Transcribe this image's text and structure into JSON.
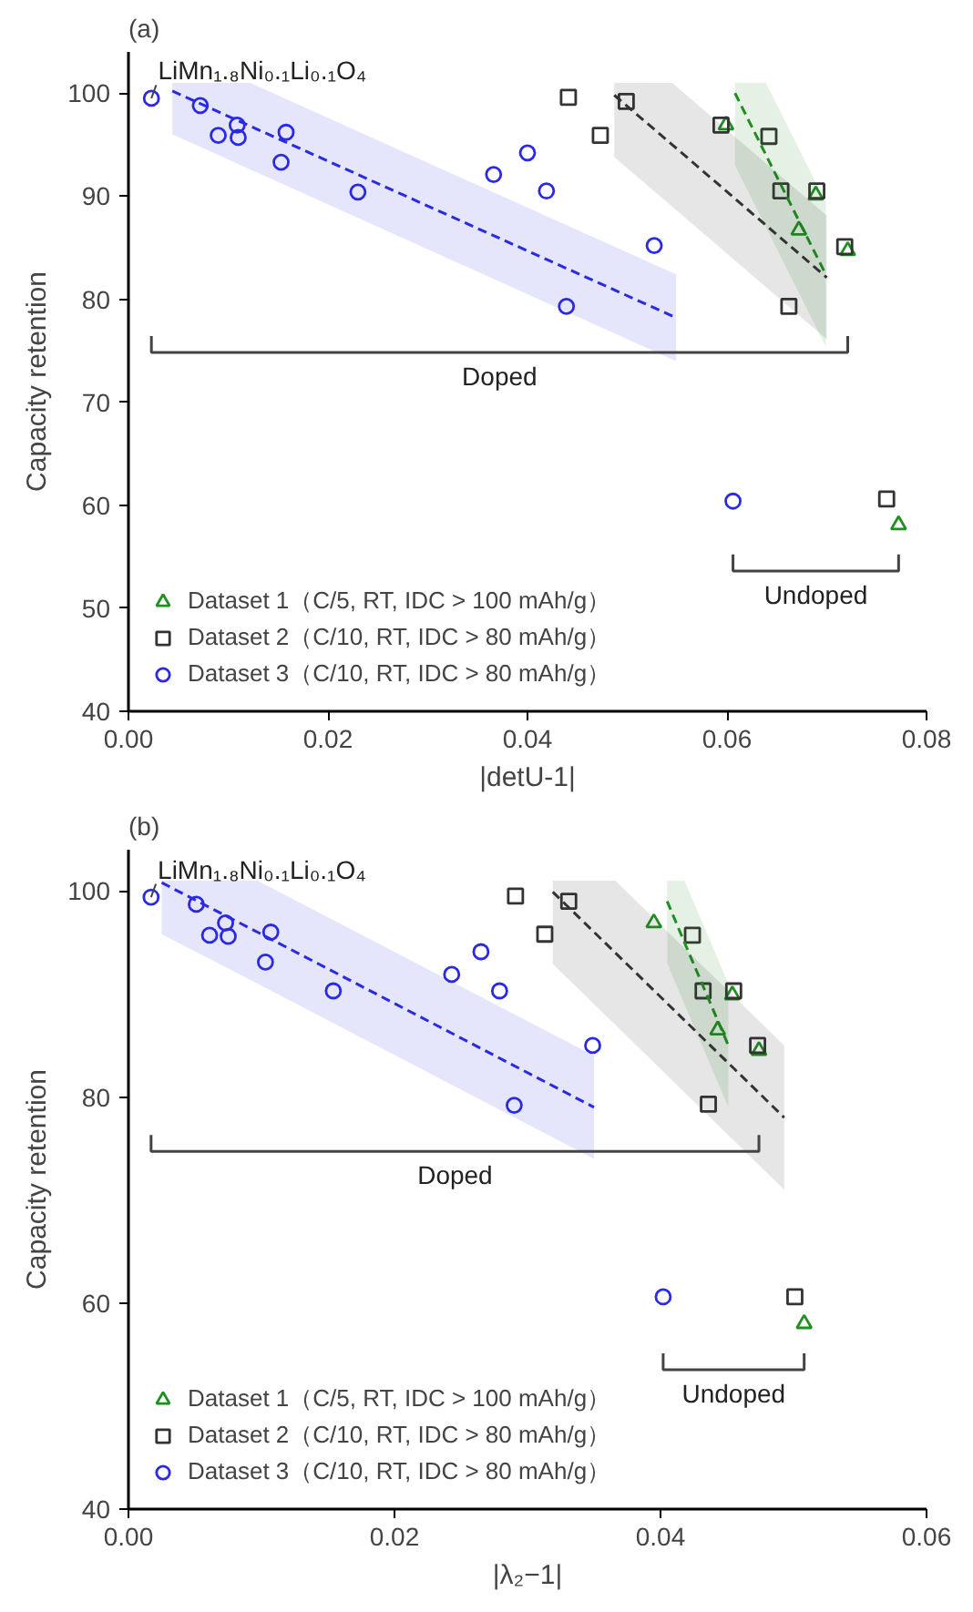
{
  "chart_data": [
    {
      "type": "scatter",
      "title": "(a)",
      "xlabel": "|detU-1|",
      "ylabel": "Capacity retention",
      "xlim": [
        0,
        0.08
      ],
      "ylim": [
        40,
        104
      ],
      "xticks": [
        {
          "value": 0,
          "label": "0.00"
        },
        {
          "value": 0.02,
          "label": "0.02"
        },
        {
          "value": 0.04,
          "label": "0.04"
        },
        {
          "value": 0.06,
          "label": "0.06"
        },
        {
          "value": 0.08,
          "label": "0.08"
        }
      ],
      "yticks": [
        40,
        50,
        60,
        70,
        80,
        90,
        100
      ],
      "grid": false,
      "legend": "bottom left",
      "annotations": [
        {
          "text": "LiMn₁.₈Ni₀.₁Li₀.₁O₄",
          "x": 0.0023,
          "y": 99.5
        },
        "Doped",
        "Undoped"
      ],
      "series": [
        {
          "name": "Dataset 1（C/5, RT, IDC > 100 mAh/g）",
          "color": "#1f8f1f",
          "marker": "triangle",
          "x": [
            0.0599,
            0.0689,
            0.0672,
            0.0721,
            0.0772
          ],
          "values": [
            96.9,
            90.1,
            86.7,
            84.7,
            58.1
          ]
        },
        {
          "name": "Dataset 2（C/10, RT, IDC > 80 mAh/g）",
          "color": "#333333",
          "marker": "square",
          "x": [
            0.0441,
            0.0499,
            0.0473,
            0.0594,
            0.0642,
            0.0654,
            0.069,
            0.0718,
            0.0662,
            0.076
          ],
          "values": [
            99.6,
            99.2,
            95.9,
            96.9,
            95.8,
            90.5,
            90.5,
            85.1,
            79.3,
            60.6
          ]
        },
        {
          "name": "Dataset 3（C/10, RT, IDC > 80 mAh/g）",
          "color": "#2a2ae6",
          "marker": "circle",
          "x": [
            0.0023,
            0.0072,
            0.009,
            0.0109,
            0.011,
            0.0158,
            0.0153,
            0.023,
            0.0366,
            0.04,
            0.0419,
            0.0527,
            0.0439,
            0.0606
          ],
          "values": [
            99.5,
            98.8,
            95.9,
            96.9,
            95.7,
            96.2,
            93.3,
            90.4,
            92.1,
            94.2,
            90.5,
            85.2,
            79.3,
            60.4
          ]
        },
        {
          "type": "line",
          "color": "#1f8f1f",
          "line_style": "dashed",
          "x": [
            0.0608,
            0.0639,
            0.0699
          ],
          "values": [
            100,
            94,
            82.4
          ],
          "lower": [
            93,
            87,
            75.4
          ],
          "upper": [
            101,
            101,
            89.4
          ]
        },
        {
          "type": "line",
          "color": "#333333",
          "line_style": "dashed",
          "x": [
            0.0487,
            0.0545,
            0.07
          ],
          "values": [
            99.8,
            95,
            82.1
          ],
          "lower": [
            93.8,
            89,
            76.1
          ],
          "upper": [
            101,
            101,
            88.1
          ]
        },
        {
          "type": "line",
          "color": "#2a2ae6",
          "line_style": "dashed",
          "x": [
            0.0044,
            0.0122,
            0.0549
          ],
          "values": [
            100.2,
            96.8,
            78.2
          ],
          "lower": [
            96,
            92.6,
            74
          ],
          "upper": [
            101,
            101,
            82.4
          ]
        }
      ]
    },
    {
      "type": "scatter",
      "title": "(b)",
      "xlabel": "|λ₂−1|",
      "ylabel": "Capacity retention",
      "xlim": [
        0,
        0.06
      ],
      "ylim": [
        40,
        104
      ],
      "xticks": [
        {
          "value": 0,
          "label": "0.00"
        },
        {
          "value": 0.02,
          "label": "0.02"
        },
        {
          "value": 0.04,
          "label": "0.04"
        },
        {
          "value": 0.06,
          "label": "0.06"
        }
      ],
      "yticks": [
        40,
        60,
        80,
        100
      ],
      "grid": false,
      "legend": "bottom left",
      "annotations": [
        {
          "text": "LiMn₁.₈Ni₀.₁Li₀.₁O₄",
          "x": 0.0017,
          "y": 99.4
        },
        "Doped",
        "Undoped"
      ],
      "series": [
        {
          "name": "Dataset 1（C/5, RT, IDC > 100 mAh/g）",
          "color": "#1f8f1f",
          "marker": "triangle",
          "x": [
            0.0395,
            0.0454,
            0.0443,
            0.0474,
            0.0508
          ],
          "values": [
            96.9,
            89.9,
            86.5,
            84.5,
            58.0
          ]
        },
        {
          "name": "Dataset 2（C/10, RT, IDC > 80 mAh/g）",
          "color": "#333333",
          "marker": "square",
          "x": [
            0.0291,
            0.0313,
            0.0331,
            0.0424,
            0.0432,
            0.0455,
            0.0473,
            0.0436,
            0.0501
          ],
          "values": [
            99.5,
            95.8,
            99.0,
            95.7,
            90.3,
            90.3,
            85.0,
            79.3,
            60.6
          ]
        },
        {
          "name": "Dataset 3（C/10, RT, IDC > 80 mAh/g）",
          "color": "#2a2ae6",
          "marker": "circle",
          "x": [
            0.0017,
            0.0051,
            0.0061,
            0.0073,
            0.0075,
            0.0107,
            0.0103,
            0.0154,
            0.0243,
            0.0265,
            0.0279,
            0.029,
            0.0349,
            0.0402
          ],
          "values": [
            99.4,
            98.7,
            95.7,
            96.9,
            95.6,
            96.0,
            93.1,
            90.3,
            91.9,
            94.1,
            90.3,
            79.2,
            85.0,
            60.6
          ]
        },
        {
          "type": "line",
          "color": "#1f8f1f",
          "line_style": "dashed",
          "x": [
            0.0405,
            0.0418,
            0.0451
          ],
          "values": [
            99.0,
            95,
            85.0
          ],
          "lower": [
            93,
            89,
            79
          ],
          "upper": [
            101,
            101,
            91
          ]
        },
        {
          "type": "line",
          "color": "#333333",
          "line_style": "dashed",
          "x": [
            0.0319,
            0.0366,
            0.0493
          ],
          "values": [
            99.9,
            94,
            78.0
          ],
          "lower": [
            92.9,
            87,
            71
          ],
          "upper": [
            101,
            101,
            85
          ]
        },
        {
          "type": "line",
          "color": "#2a2ae6",
          "line_style": "dashed",
          "x": [
            0.0025,
            0.0097,
            0.035
          ],
          "values": [
            100.8,
            96,
            79.0
          ],
          "lower": [
            95.8,
            91,
            74
          ],
          "upper": [
            101,
            101,
            84
          ]
        }
      ]
    }
  ]
}
